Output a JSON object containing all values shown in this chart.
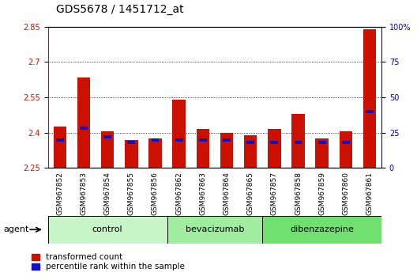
{
  "title": "GDS5678 / 1451712_at",
  "samples": [
    "GSM967852",
    "GSM967853",
    "GSM967854",
    "GSM967855",
    "GSM967856",
    "GSM967862",
    "GSM967863",
    "GSM967864",
    "GSM967865",
    "GSM967857",
    "GSM967858",
    "GSM967859",
    "GSM967860",
    "GSM967861"
  ],
  "red_values": [
    2.425,
    2.635,
    2.405,
    2.37,
    2.375,
    2.54,
    2.415,
    2.4,
    2.39,
    2.415,
    2.48,
    2.375,
    2.405,
    2.84
  ],
  "blue_percentile": [
    20,
    28,
    22,
    18,
    20,
    20,
    20,
    20,
    18,
    18,
    18,
    18,
    18,
    40
  ],
  "ylim_left": [
    2.25,
    2.85
  ],
  "ylim_right": [
    0,
    100
  ],
  "yticks_left": [
    2.25,
    2.4,
    2.55,
    2.7,
    2.85
  ],
  "yticks_right": [
    0,
    25,
    50,
    75,
    100
  ],
  "groups": [
    {
      "label": "control",
      "start": 0,
      "end": 5,
      "color": "#c8f5c8"
    },
    {
      "label": "bevacizumab",
      "start": 5,
      "end": 9,
      "color": "#a0eda0"
    },
    {
      "label": "dibenzazepine",
      "start": 9,
      "end": 14,
      "color": "#70e070"
    }
  ],
  "bar_color": "#cc1100",
  "blue_color": "#1111cc",
  "bar_width": 0.55,
  "bg_color": "#ffffff",
  "sample_bg_color": "#d8d8d8",
  "agent_label": "agent",
  "legend_items": [
    "transformed count",
    "percentile rank within the sample"
  ],
  "title_fontsize": 10,
  "tick_fontsize": 7,
  "sample_fontsize": 6.5,
  "group_fontsize": 8,
  "ylabel_left_color": "#cc1100",
  "ylabel_right_color": "#0000cc"
}
